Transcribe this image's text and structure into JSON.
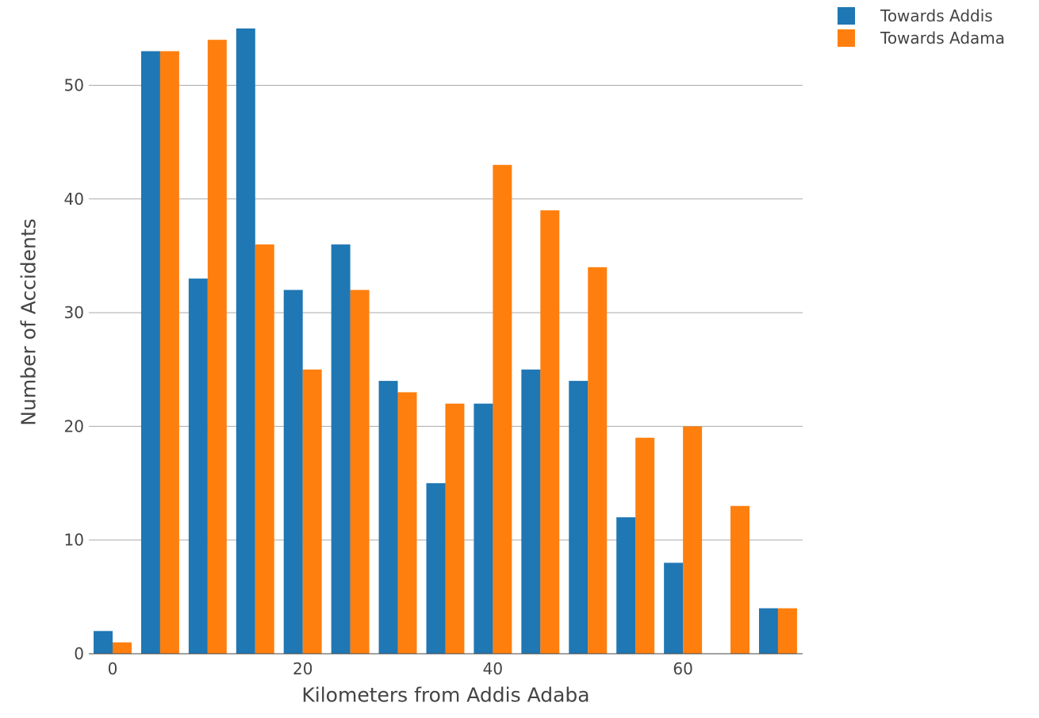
{
  "chart_data": {
    "type": "bar",
    "xlabel": "Kilometers from Addis Adaba",
    "ylabel": "Number of Accidents",
    "x": [
      0,
      5,
      10,
      15,
      20,
      25,
      30,
      35,
      40,
      45,
      50,
      55,
      60,
      65,
      70
    ],
    "series": [
      {
        "name": "Towards Addis",
        "color": "#1f77b4",
        "values": [
          2,
          53,
          33,
          55,
          32,
          36,
          24,
          15,
          22,
          25,
          24,
          12,
          8,
          0,
          4
        ]
      },
      {
        "name": "Towards Adama",
        "color": "#ff7f0e",
        "values": [
          1,
          53,
          54,
          36,
          25,
          32,
          23,
          22,
          43,
          39,
          34,
          19,
          20,
          13,
          4
        ]
      }
    ],
    "xlim": [
      -2.5,
      72.5
    ],
    "ylim": [
      0,
      55
    ],
    "xticks": [
      0,
      20,
      40,
      60
    ],
    "yticks": [
      0,
      10,
      20,
      30,
      40,
      50
    ],
    "grid": "horizontal",
    "legend_position": "top-right"
  }
}
